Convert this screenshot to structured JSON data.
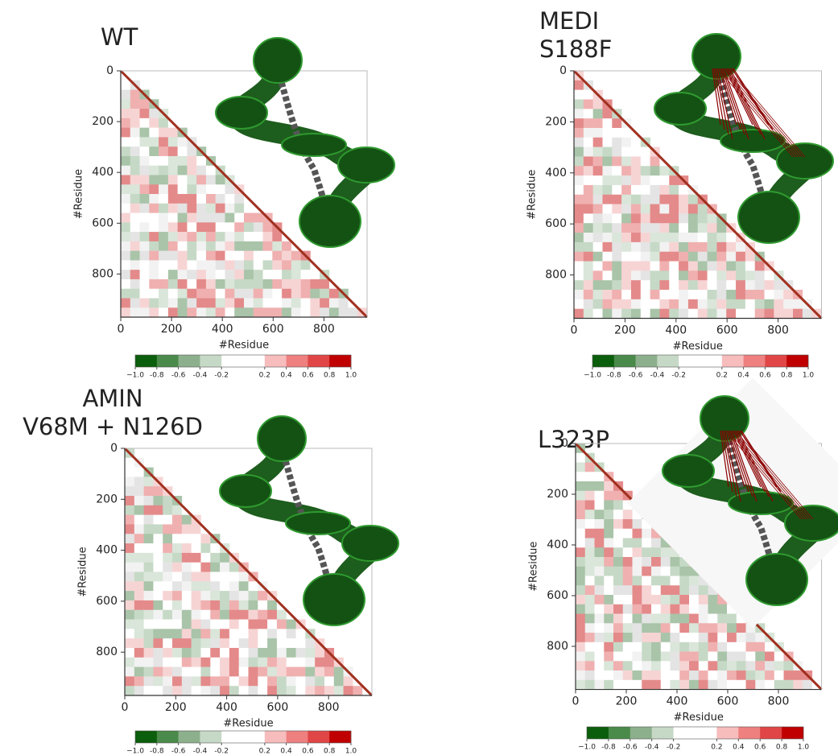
{
  "chart_data": [
    {
      "type": "heatmap",
      "title": [
        "WT"
      ],
      "xlabel": "#Residue",
      "ylabel": "#Residue",
      "xlim": [
        0,
        970
      ],
      "ylim": [
        970,
        0
      ],
      "xticks": [
        0,
        200,
        400,
        600,
        800
      ],
      "yticks": [
        0,
        200,
        400,
        600,
        800
      ],
      "colorbar": {
        "lim": [
          -1,
          1
        ],
        "colors": [
          "#0b5e0b",
          "#4a8a4a",
          "#8cb08c",
          "#c6d9c6",
          "#ffffff",
          "#ffffff",
          "#f7bcbc",
          "#ee8080",
          "#e04646",
          "#c00000"
        ],
        "ticks": [
          {
            "value": -1,
            "label": "−1.0"
          },
          -0.8,
          -0.6,
          -0.4,
          -0.2,
          0.2,
          0.4,
          0.6,
          0.8,
          {
            "value": 1,
            "label": "1.0"
          }
        ]
      }
    },
    {
      "type": "heatmap",
      "title": [
        "MEDI",
        "S188F"
      ],
      "xlabel": "#Residue",
      "ylabel": "#Residue",
      "xlim": [
        0,
        970
      ],
      "ylim": [
        970,
        0
      ],
      "xticks": [
        0,
        200,
        400,
        600,
        800
      ],
      "yticks": [
        0,
        200,
        400,
        600,
        800
      ],
      "colorbar": {
        "lim": [
          -1,
          1
        ],
        "colors": [
          "#0b5e0b",
          "#4a8a4a",
          "#8cb08c",
          "#c6d9c6",
          "#ffffff",
          "#ffffff",
          "#f7bcbc",
          "#ee8080",
          "#e04646",
          "#c00000"
        ],
        "ticks": [
          {
            "value": -1,
            "label": "−1.0"
          },
          -0.8,
          -0.6,
          -0.4,
          -0.2,
          0.2,
          0.4,
          0.6,
          0.8,
          {
            "value": 1,
            "label": "1.0"
          }
        ]
      }
    },
    {
      "type": "heatmap",
      "title": [
        "AMIN",
        "V68M + N126D"
      ],
      "xlabel": "#Residue",
      "ylabel": "#Residue",
      "xlim": [
        0,
        970
      ],
      "ylim": [
        970,
        0
      ],
      "xticks": [
        0,
        200,
        400,
        600,
        800
      ],
      "yticks": [
        0,
        200,
        400,
        600,
        800
      ],
      "colorbar": {
        "lim": [
          -1,
          1
        ],
        "colors": [
          "#0b5e0b",
          "#4a8a4a",
          "#8cb08c",
          "#c6d9c6",
          "#ffffff",
          "#ffffff",
          "#f7bcbc",
          "#ee8080",
          "#e04646",
          "#c00000"
        ],
        "ticks": [
          {
            "value": -1,
            "label": "−1.0"
          },
          -0.8,
          -0.6,
          -0.4,
          -0.2,
          0.2,
          0.4,
          0.6,
          0.8,
          {
            "value": 1,
            "label": "1.0"
          }
        ]
      }
    },
    {
      "type": "heatmap",
      "title": [
        "L323P"
      ],
      "xlabel": "#Residue",
      "ylabel": "#Residue",
      "xlim": [
        0,
        970
      ],
      "ylim": [
        970,
        0
      ],
      "xticks": [
        0,
        200,
        400,
        600,
        800
      ],
      "yticks": [
        0,
        200,
        400,
        600,
        800
      ],
      "colorbar": {
        "lim": [
          -1,
          1
        ],
        "colors": [
          "#0b5e0b",
          "#4a8a4a",
          "#8cb08c",
          "#c6d9c6",
          "#ffffff",
          "#ffffff",
          "#f7bcbc",
          "#ee8080",
          "#e04646",
          "#c00000"
        ],
        "ticks": [
          {
            "value": -1,
            "label": "−1.0"
          },
          -0.8,
          -0.6,
          -0.4,
          -0.2,
          0.2,
          0.4,
          0.6,
          0.8,
          {
            "value": 1,
            "label": "1.0"
          }
        ]
      }
    }
  ]
}
